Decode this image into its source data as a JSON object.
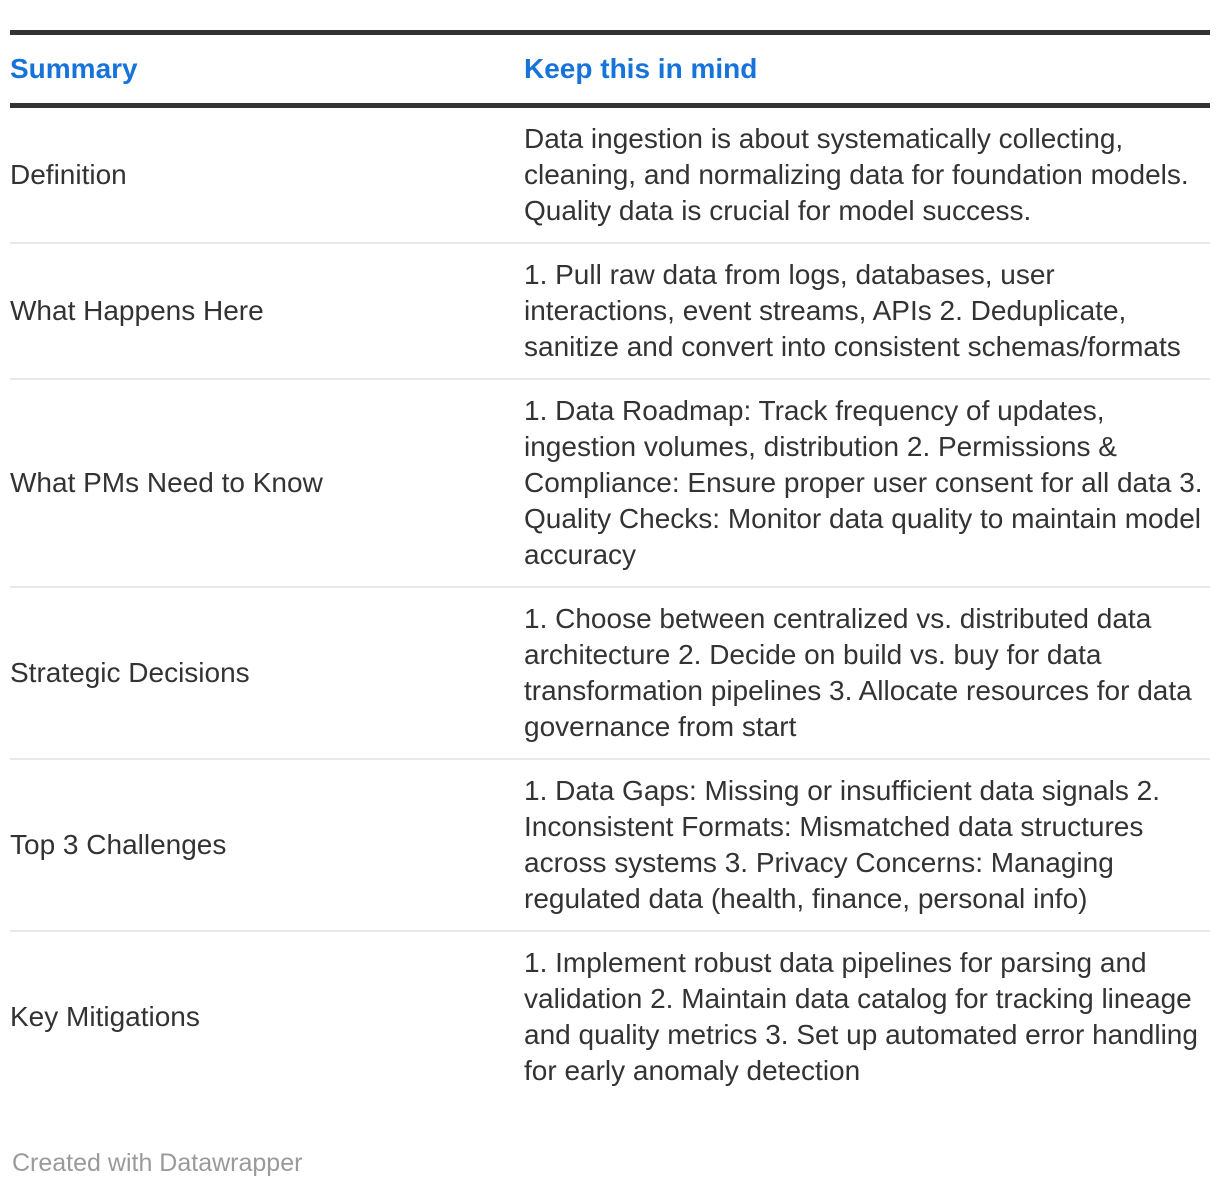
{
  "chart_data": {
    "type": "table",
    "columns": [
      "Summary",
      "Keep this in mind"
    ],
    "rows": [
      [
        "Definition",
        "Data ingestion is about systematically collecting, cleaning, and normalizing data for foundation models. Quality data is crucial for model success."
      ],
      [
        "What Happens Here",
        "1. Pull raw data from logs, databases, user interactions, event streams, APIs 2. Deduplicate, sanitize and convert into consistent schemas/formats"
      ],
      [
        "What PMs Need to Know",
        "1. Data Roadmap: Track frequency of updates, ingestion volumes, distribution 2. Permissions & Compliance: Ensure proper user consent for all data 3. Quality Checks: Monitor data quality to maintain model accuracy"
      ],
      [
        "Strategic Decisions",
        "1. Choose between centralized vs. distributed data architecture 2. Decide on build vs. buy for data transformation pipelines 3. Allocate resources for data governance from start"
      ],
      [
        "Top 3 Challenges",
        "1. Data Gaps: Missing or insufficient data signals 2. Inconsistent Formats: Mismatched data structures across systems 3. Privacy Concerns: Managing regulated data (health, finance, personal info)"
      ],
      [
        "Key Mitigations",
        "1. Implement robust data pipelines for parsing and validation 2. Maintain data catalog for tracking lineage and quality metrics 3. Set up automated error handling for early anomaly detection"
      ]
    ],
    "layout_hints": {
      "header_rule": "thick dark top and bottom",
      "row_divider": "thin light gray",
      "label_column_alignment": "middle"
    }
  },
  "footer": {
    "credit": "Created with Datawrapper"
  },
  "colors": {
    "header_text": "#1673da",
    "body_text": "#333333",
    "rule_dark": "#333333",
    "rule_light": "#e9e9e9",
    "footer_text": "#9a9a9a",
    "page_bg": "#ffffff"
  }
}
